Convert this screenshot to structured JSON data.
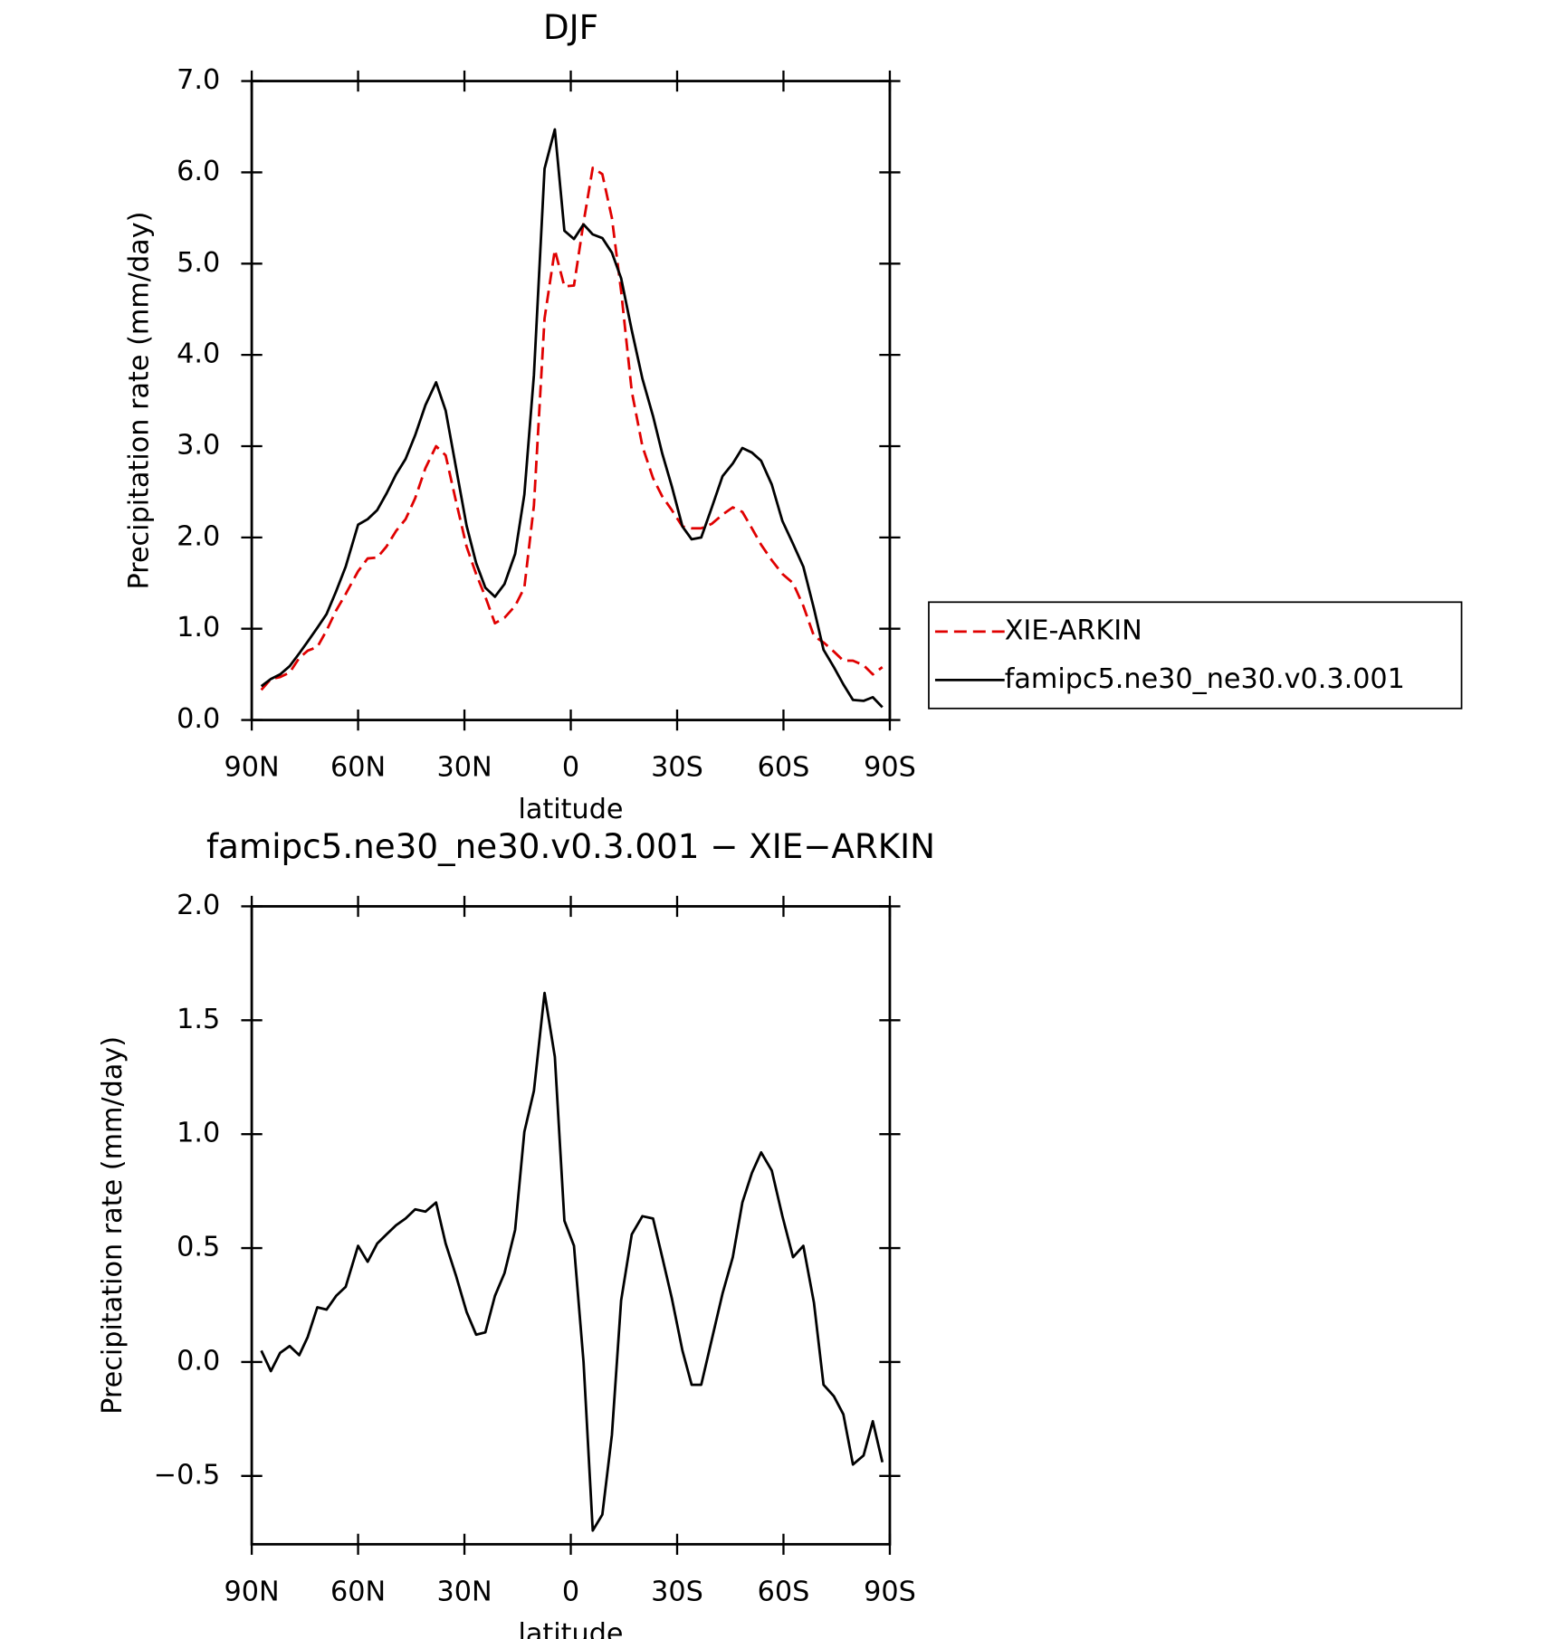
{
  "chart_data": [
    {
      "type": "line",
      "title": "DJF",
      "xlabel": "latitude",
      "ylabel": "Precipitation rate (mm/day)",
      "x": [
        87.3,
        84.6,
        82.0,
        79.3,
        76.6,
        74.2,
        71.5,
        68.9,
        66.2,
        63.5,
        60.0,
        57.3,
        54.6,
        52.0,
        49.3,
        46.6,
        43.9,
        41.0,
        38.0,
        35.3,
        32.4,
        29.4,
        26.7,
        24.1,
        21.4,
        18.7,
        15.7,
        13.1,
        10.4,
        7.4,
        4.5,
        1.8,
        -0.9,
        -3.6,
        -6.2,
        -8.9,
        -11.6,
        -14.2,
        -17.2,
        -20.2,
        -23.2,
        -25.8,
        -28.5,
        -31.5,
        -34.1,
        -36.8,
        -39.8,
        -42.8,
        -45.7,
        -48.4,
        -51.1,
        -53.7,
        -56.7,
        -59.7,
        -62.7,
        -65.6,
        -68.6,
        -71.3,
        -74.2,
        -76.9,
        -79.6,
        -82.6,
        -85.2,
        -87.9
      ],
      "series": [
        {
          "name": "XIE-ARKIN",
          "color": "#e00000",
          "dashed": true,
          "values": [
            0.33,
            0.45,
            0.47,
            0.52,
            0.68,
            0.76,
            0.8,
            0.98,
            1.2,
            1.38,
            1.63,
            1.77,
            1.78,
            1.9,
            2.07,
            2.2,
            2.43,
            2.76,
            3.0,
            2.9,
            2.4,
            1.9,
            1.6,
            1.35,
            1.06,
            1.12,
            1.25,
            1.45,
            2.35,
            4.4,
            5.15,
            4.75,
            4.76,
            5.45,
            6.05,
            5.98,
            5.5,
            4.7,
            3.6,
            3.0,
            2.65,
            2.45,
            2.3,
            2.12,
            2.1,
            2.1,
            2.15,
            2.25,
            2.33,
            2.28,
            2.1,
            1.92,
            1.75,
            1.6,
            1.5,
            1.25,
            0.92,
            0.85,
            0.75,
            0.65,
            0.65,
            0.6,
            0.5,
            0.58
          ]
        },
        {
          "name": "famipc5.ne30_ne30.v0.3.001",
          "color": "#000000",
          "dashed": false,
          "values": [
            0.37,
            0.45,
            0.5,
            0.59,
            0.73,
            0.86,
            1.01,
            1.16,
            1.41,
            1.68,
            2.14,
            2.2,
            2.3,
            2.48,
            2.69,
            2.86,
            3.12,
            3.45,
            3.7,
            3.39,
            2.77,
            2.13,
            1.72,
            1.45,
            1.35,
            1.49,
            1.82,
            2.47,
            3.78,
            6.04,
            6.47,
            5.36,
            5.27,
            5.43,
            5.32,
            5.28,
            5.12,
            4.84,
            4.27,
            3.74,
            3.33,
            2.92,
            2.56,
            2.12,
            1.98,
            2.0,
            2.33,
            2.67,
            2.81,
            2.98,
            2.93,
            2.84,
            2.58,
            2.18,
            1.93,
            1.68,
            1.22,
            0.77,
            0.58,
            0.39,
            0.22,
            0.21,
            0.25,
            0.14
          ]
        }
      ],
      "xlim": [
        90,
        -90
      ],
      "xticks": [
        {
          "value": 90,
          "label": "90N"
        },
        {
          "value": 60,
          "label": "60N"
        },
        {
          "value": 30,
          "label": "30N"
        },
        0,
        {
          "value": -30,
          "label": "30S"
        },
        {
          "value": -60,
          "label": "60S"
        },
        {
          "value": -90,
          "label": "90S"
        }
      ],
      "ylim": [
        0,
        7
      ],
      "yticks": [
        {
          "value": 0,
          "label": "0.0"
        },
        {
          "value": 1,
          "label": "1.0"
        },
        {
          "value": 2,
          "label": "2.0"
        },
        {
          "value": 3,
          "label": "3.0"
        },
        {
          "value": 4,
          "label": "4.0"
        },
        {
          "value": 5,
          "label": "5.0"
        },
        {
          "value": 6,
          "label": "6.0"
        },
        {
          "value": 7,
          "label": "7.0"
        }
      ],
      "legend": "right"
    },
    {
      "type": "line",
      "title": "famipc5.ne30_ne30.v0.3.001 − XIE−ARKIN",
      "xlabel": "latitude",
      "ylabel": "Precipitation rate (mm/day)",
      "x": [
        87.3,
        84.6,
        82.0,
        79.3,
        76.6,
        74.2,
        71.5,
        68.9,
        66.2,
        63.5,
        60.0,
        57.3,
        54.6,
        52.0,
        49.3,
        46.6,
        43.9,
        41.0,
        38.0,
        35.3,
        32.4,
        29.4,
        26.7,
        24.1,
        21.4,
        18.7,
        15.7,
        13.1,
        10.4,
        7.4,
        4.5,
        1.8,
        -0.9,
        -3.6,
        -6.2,
        -8.9,
        -11.6,
        -14.2,
        -17.2,
        -20.2,
        -23.2,
        -25.8,
        -28.5,
        -31.5,
        -34.1,
        -36.8,
        -39.8,
        -42.8,
        -45.7,
        -48.4,
        -51.1,
        -53.7,
        -56.7,
        -59.7,
        -62.7,
        -65.6,
        -68.6,
        -71.3,
        -74.2,
        -76.9,
        -79.6,
        -82.6,
        -85.2,
        -87.9
      ],
      "series": [
        {
          "color": "#000000",
          "dashed": false,
          "values": [
            0.05,
            -0.04,
            0.04,
            0.07,
            0.03,
            0.11,
            0.24,
            0.23,
            0.29,
            0.33,
            0.51,
            0.44,
            0.52,
            0.56,
            0.6,
            0.63,
            0.67,
            0.66,
            0.7,
            0.52,
            0.38,
            0.22,
            0.12,
            0.13,
            0.29,
            0.39,
            0.58,
            1.01,
            1.19,
            1.62,
            1.34,
            0.62,
            0.51,
            0.0,
            -0.74,
            -0.67,
            -0.32,
            0.27,
            0.56,
            0.64,
            0.63,
            0.46,
            0.28,
            0.05,
            -0.1,
            -0.1,
            0.1,
            0.3,
            0.46,
            0.7,
            0.83,
            0.92,
            0.84,
            0.64,
            0.46,
            0.51,
            0.26,
            -0.1,
            -0.15,
            -0.23,
            -0.45,
            -0.41,
            -0.26,
            -0.44
          ]
        }
      ],
      "xlim": [
        90,
        -90
      ],
      "xticks": [
        {
          "value": 90,
          "label": "90N"
        },
        {
          "value": 60,
          "label": "60N"
        },
        {
          "value": 30,
          "label": "30N"
        },
        0,
        {
          "value": -30,
          "label": "30S"
        },
        {
          "value": -60,
          "label": "60S"
        },
        {
          "value": -90,
          "label": "90S"
        }
      ],
      "ylim": [
        -0.8,
        2.0
      ],
      "yticks": [
        {
          "value": -0.5,
          "label": "−0.5"
        },
        {
          "value": 0,
          "label": "0.0"
        },
        0.5,
        {
          "value": 1,
          "label": "1.0"
        },
        1.5,
        {
          "value": 2,
          "label": "2.0"
        }
      ]
    }
  ]
}
